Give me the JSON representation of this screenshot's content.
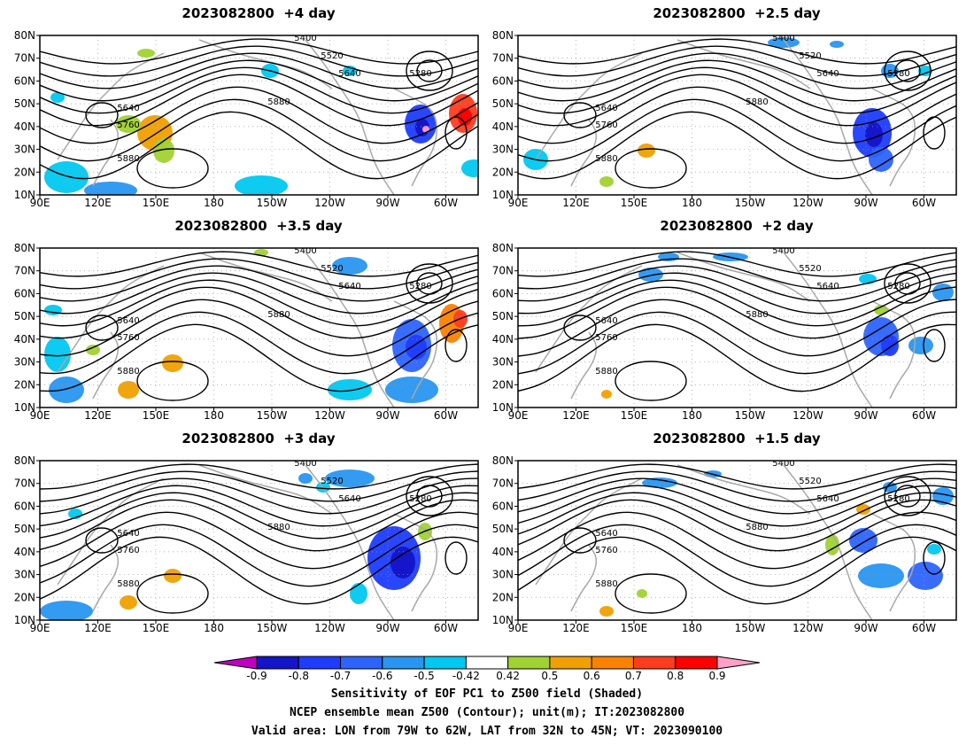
{
  "panels": [
    {
      "title": "2023082800  +4 day"
    },
    {
      "title": "2023082800  +2.5 day"
    },
    {
      "title": "2023082800  +3.5 day"
    },
    {
      "title": "2023082800  +2 day"
    },
    {
      "title": "2023082800  +3 day"
    },
    {
      "title": "2023082800  +1.5 day"
    }
  ],
  "axes": {
    "lat_labels": [
      "80N",
      "70N",
      "60N",
      "50N",
      "40N",
      "30N",
      "20N",
      "10N"
    ],
    "lon_labels": [
      "90E",
      "120E",
      "150E",
      "180",
      "150W",
      "120W",
      "90W",
      "60W"
    ]
  },
  "contour_levels": [
    "5280",
    "5400",
    "5520",
    "5640",
    "5760",
    "5880"
  ],
  "colorbar": {
    "ticks": [
      "-0.9",
      "-0.8",
      "-0.7",
      "-0.6",
      "-0.5",
      "-0.42",
      "0.42",
      "0.5",
      "0.6",
      "0.7",
      "0.8",
      "0.9"
    ],
    "colors": [
      "#c000c0",
      "#1414c8",
      "#1e3cff",
      "#2d64ff",
      "#2896f0",
      "#00c8f0",
      "#ffffff",
      "#a0d232",
      "#f0a000",
      "#fa8200",
      "#ff3c1e",
      "#ff0000",
      "#ffa0c8"
    ]
  },
  "footer": {
    "line1": "Sensitivity of EOF PC1 to Z500 field (Shaded)",
    "line2": "NCEP ensemble mean Z500 (Contour); unit(m); IT:2023082800",
    "line3": "Valid area: LON from 79W to 62W, LAT from 32N to 45N; VT: 2023090100"
  }
}
